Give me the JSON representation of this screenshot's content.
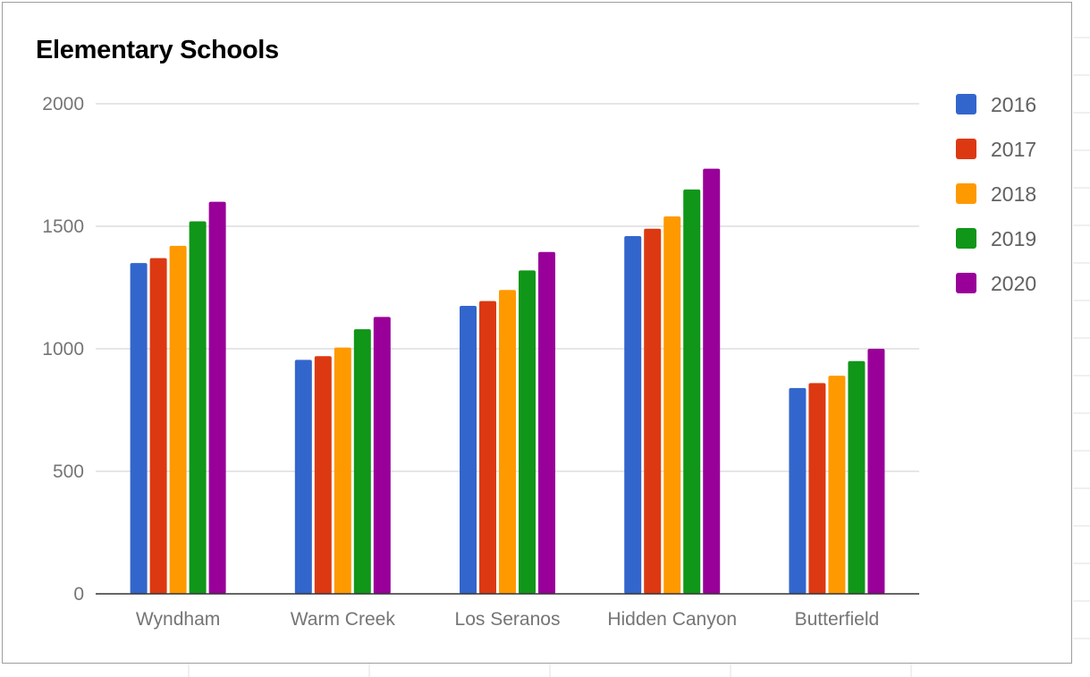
{
  "chart_data": {
    "type": "bar",
    "title": "Elementary Schools",
    "xlabel": "",
    "ylabel": "",
    "ylim": [
      0,
      2000
    ],
    "yticks": [
      0,
      500,
      1000,
      1500,
      2000
    ],
    "grid": true,
    "legend_position": "right",
    "categories": [
      "Wyndham",
      "Warm Creek",
      "Los Seranos",
      "Hidden Canyon",
      "Butterfield"
    ],
    "series": [
      {
        "name": "2016",
        "color": "#3366cc",
        "values": [
          1350,
          955,
          1175,
          1460,
          840
        ]
      },
      {
        "name": "2017",
        "color": "#dc3912",
        "values": [
          1370,
          970,
          1195,
          1490,
          860
        ]
      },
      {
        "name": "2018",
        "color": "#ff9900",
        "values": [
          1420,
          1005,
          1240,
          1540,
          890
        ]
      },
      {
        "name": "2019",
        "color": "#109618",
        "values": [
          1520,
          1080,
          1320,
          1650,
          950
        ]
      },
      {
        "name": "2020",
        "color": "#990099",
        "values": [
          1600,
          1130,
          1395,
          1735,
          1000
        ]
      }
    ]
  }
}
